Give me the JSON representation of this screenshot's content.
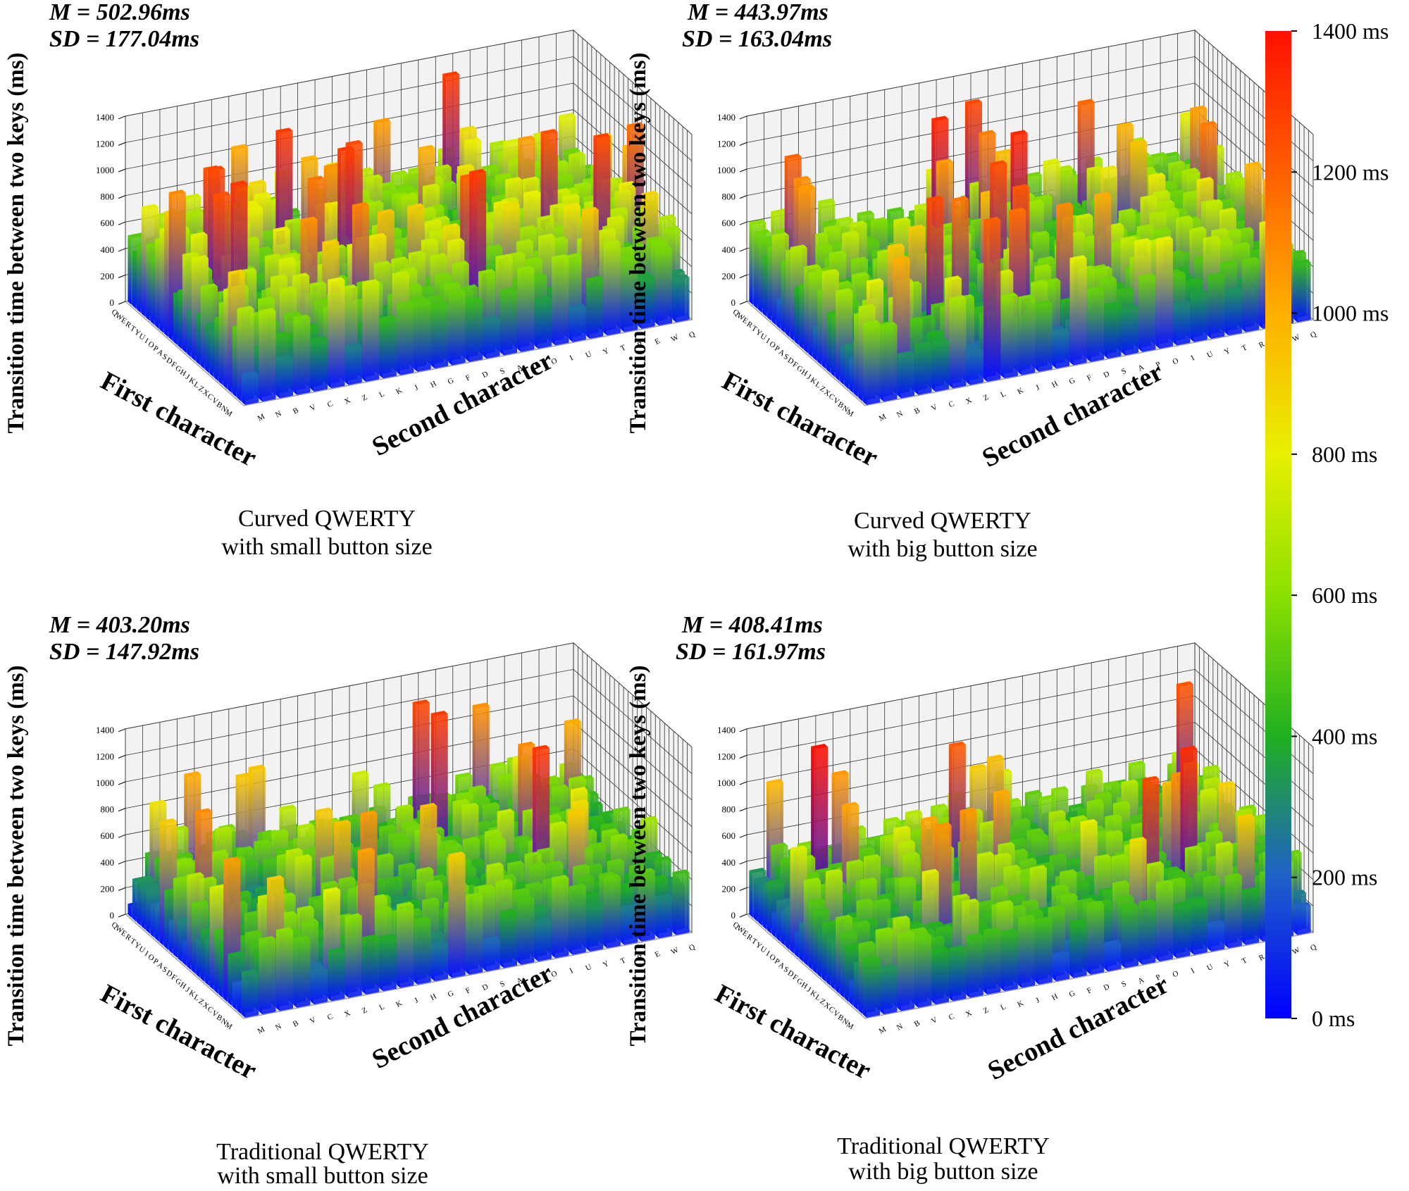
{
  "chart_data": [
    {
      "type": "bar3d",
      "title": "Curved QWERTY with small button size",
      "caption_lines": [
        "Curved QWERTY",
        "with small button size"
      ],
      "mean_label": "M = 502.96ms",
      "sd_label": "SD = 177.04ms",
      "zlabel": "Transition time between two keys (ms)",
      "xlabel": "First character",
      "ylabel": "Second character",
      "first_chars": [
        "Q",
        "W",
        "E",
        "R",
        "T",
        "Y",
        "U",
        "I",
        "O",
        "P",
        "A",
        "S",
        "D",
        "F",
        "G",
        "H",
        "J",
        "K",
        "L",
        "Z",
        "X",
        "C",
        "V",
        "B",
        "N",
        "M"
      ],
      "second_chars": [
        "M",
        "N",
        "B",
        "V",
        "C",
        "X",
        "Z",
        "L",
        "K",
        "J",
        "H",
        "G",
        "F",
        "D",
        "S",
        "A",
        "P",
        "O",
        "I",
        "U",
        "Y",
        "T",
        "R",
        "E",
        "W",
        "Q"
      ],
      "zticks": [
        0,
        200,
        400,
        600,
        800,
        1000,
        1200,
        1400
      ],
      "zlim": [
        0,
        1400
      ],
      "mean": 502.96,
      "sd": 177.04,
      "max": 1300,
      "seed": 11
    },
    {
      "type": "bar3d",
      "title": "Curved QWERTY with big button size",
      "caption_lines": [
        "Curved QWERTY",
        "with big button size"
      ],
      "mean_label": "M = 443.97ms",
      "sd_label": "SD = 163.04ms",
      "zlabel": "Transition time between two keys (ms)",
      "xlabel": "First character",
      "ylabel": "Second character",
      "first_chars": [
        "Q",
        "W",
        "E",
        "R",
        "T",
        "Y",
        "U",
        "I",
        "O",
        "P",
        "A",
        "S",
        "D",
        "F",
        "G",
        "H",
        "J",
        "K",
        "L",
        "Z",
        "X",
        "C",
        "V",
        "B",
        "N",
        "M"
      ],
      "second_chars": [
        "M",
        "N",
        "B",
        "V",
        "C",
        "X",
        "Z",
        "L",
        "K",
        "J",
        "H",
        "G",
        "F",
        "D",
        "S",
        "A",
        "P",
        "O",
        "I",
        "U",
        "Y",
        "T",
        "R",
        "E",
        "W",
        "Q"
      ],
      "zticks": [
        0,
        200,
        400,
        600,
        800,
        1000,
        1200,
        1400
      ],
      "zlim": [
        0,
        1400
      ],
      "mean": 443.97,
      "sd": 163.04,
      "max": 1340,
      "seed": 23
    },
    {
      "type": "bar3d",
      "title": "Traditional QWERTY with small button size",
      "caption_lines": [
        "Traditional QWERTY",
        "with small button size"
      ],
      "mean_label": "M =  403.20ms",
      "sd_label": "SD = 147.92ms",
      "zlabel": "Transition time between two keys (ms)",
      "xlabel": "First character",
      "ylabel": "Second character",
      "first_chars": [
        "Q",
        "W",
        "E",
        "R",
        "T",
        "Y",
        "U",
        "I",
        "O",
        "P",
        "A",
        "S",
        "D",
        "F",
        "G",
        "H",
        "J",
        "K",
        "L",
        "Z",
        "X",
        "C",
        "V",
        "B",
        "N",
        "M"
      ],
      "second_chars": [
        "M",
        "N",
        "B",
        "V",
        "C",
        "X",
        "Z",
        "L",
        "K",
        "J",
        "H",
        "G",
        "F",
        "D",
        "S",
        "A",
        "P",
        "O",
        "I",
        "U",
        "Y",
        "T",
        "R",
        "E",
        "W",
        "Q"
      ],
      "zticks": [
        0,
        200,
        400,
        600,
        800,
        1000,
        1200,
        1400
      ],
      "zlim": [
        0,
        1400
      ],
      "mean": 403.2,
      "sd": 147.92,
      "max": 1300,
      "seed": 37
    },
    {
      "type": "bar3d",
      "title": "Traditional QWERTY with big button size",
      "caption_lines": [
        "Traditional QWERTY",
        "with big button size"
      ],
      "mean_label": "M = 408.41ms",
      "sd_label": "SD = 161.97ms",
      "zlabel": "Transition time between two keys (ms)",
      "xlabel": "First character",
      "ylabel": "Second character",
      "first_chars": [
        "Q",
        "W",
        "E",
        "R",
        "T",
        "Y",
        "U",
        "I",
        "O",
        "P",
        "A",
        "S",
        "D",
        "F",
        "G",
        "H",
        "J",
        "K",
        "L",
        "Z",
        "X",
        "C",
        "V",
        "B",
        "N",
        "M"
      ],
      "second_chars": [
        "M",
        "N",
        "B",
        "V",
        "C",
        "X",
        "Z",
        "L",
        "K",
        "J",
        "H",
        "G",
        "F",
        "D",
        "S",
        "A",
        "P",
        "O",
        "I",
        "U",
        "Y",
        "T",
        "R",
        "E",
        "W",
        "Q"
      ],
      "zticks": [
        0,
        200,
        400,
        600,
        800,
        1000,
        1200,
        1400
      ],
      "zlim": [
        0,
        1400
      ],
      "mean": 408.41,
      "sd": 161.97,
      "max": 1400,
      "seed": 53
    }
  ],
  "colorbar": {
    "labels": [
      "1400 ms",
      "1200 ms",
      "1000 ms",
      "800 ms",
      "600 ms",
      "400 ms",
      "200 ms",
      "0 ms"
    ],
    "values": [
      1400,
      1200,
      1000,
      800,
      600,
      400,
      200,
      0
    ],
    "stops": [
      "#0000ff",
      "#1f60c8",
      "#20b020",
      "#8be000",
      "#e8f000",
      "#ffb000",
      "#ff6000",
      "#ff1000"
    ]
  }
}
